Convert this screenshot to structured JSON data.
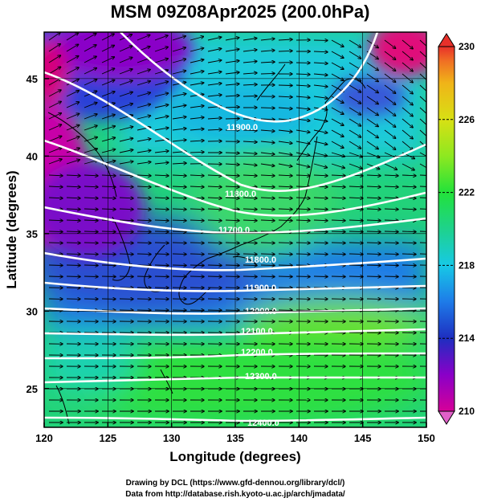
{
  "title": "MSM 09Z08Apr2025 (200.0hPa)",
  "x_axis": {
    "label": "Longitude (degrees)",
    "ticks": [
      "120",
      "125",
      "130",
      "135",
      "140",
      "145",
      "150"
    ],
    "range": [
      120,
      150
    ]
  },
  "y_axis": {
    "label": "Latitude  (degrees)",
    "ticks": [
      "25",
      "30",
      "35",
      "40",
      "45"
    ],
    "range": [
      22.5,
      48
    ]
  },
  "colorbar": {
    "ticks": [
      "230",
      "226",
      "222",
      "218",
      "214",
      "210"
    ],
    "range": [
      210,
      230
    ],
    "colors": [
      "#d60098",
      "#8a00c8",
      "#1e2ec0",
      "#1e7be8",
      "#17c9e6",
      "#1ed28c",
      "#22e23a",
      "#8ee820",
      "#d8e014",
      "#f0b418",
      "#f07024",
      "#e8302a"
    ]
  },
  "contours": {
    "labels": [
      "11900.0",
      "11800.0",
      "11700.0",
      "11800.0",
      "11900.0",
      "12000.0",
      "12100.0",
      "12200.0",
      "12300.0",
      "12400.0"
    ],
    "color": "#ffffff"
  },
  "credits": {
    "line1": "Drawing by DCL (https://www.gfd-dennou.org/library/dcl/)",
    "line2": "Data from http://database.rish.kyoto-u.ac.jp/arch/jmadata/"
  }
}
